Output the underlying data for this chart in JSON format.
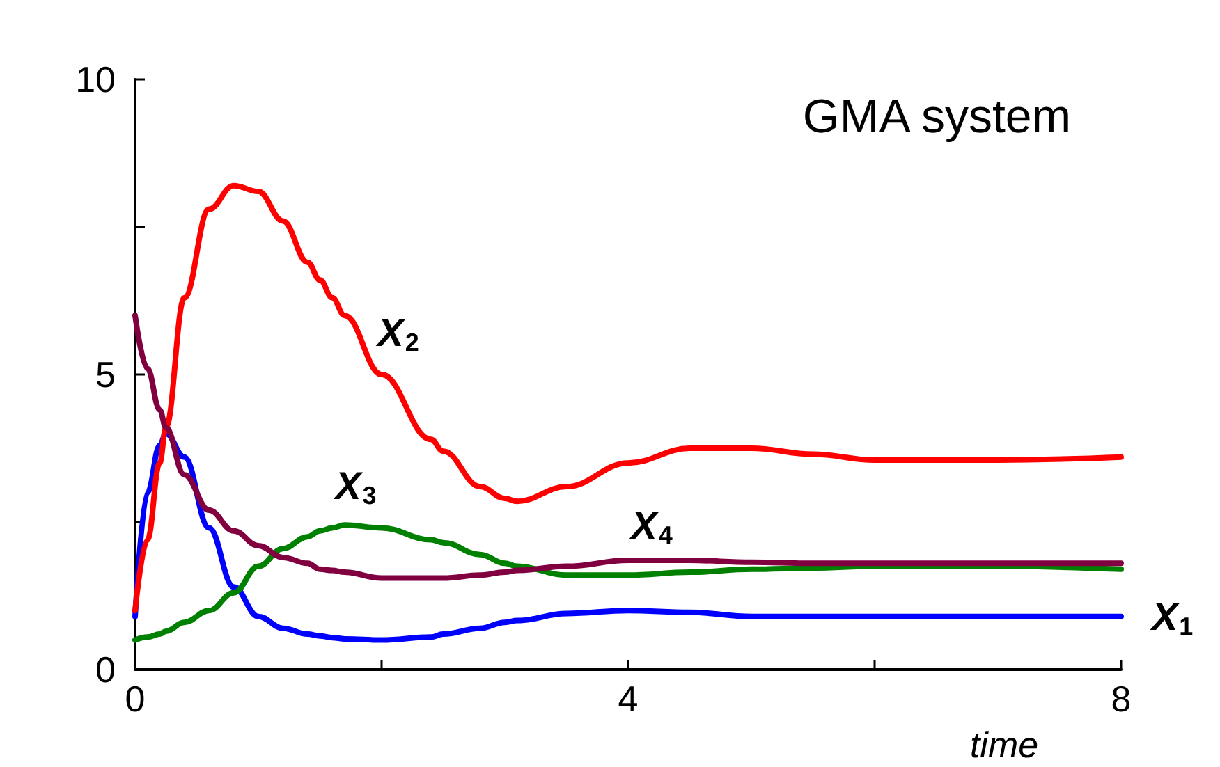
{
  "chart_data": {
    "type": "line",
    "title": "GMA system",
    "xlabel": "time",
    "x": [
      0,
      0.1,
      0.2,
      0.25,
      0.4,
      0.6,
      0.8,
      1,
      1.2,
      1.4,
      1.5,
      1.6,
      1.7,
      2,
      2.4,
      2.5,
      2.8,
      3,
      3.1,
      3.5,
      4,
      4.5,
      5,
      5.5,
      6,
      7,
      8
    ],
    "series": [
      {
        "name": "X$_{1}$",
        "color": "#0000ff",
        "values": [
          0.9,
          3.0,
          3.8,
          4.0,
          3.6,
          2.4,
          1.4,
          0.9,
          0.7,
          0.6,
          0.57,
          0.54,
          0.52,
          0.5,
          0.55,
          0.6,
          0.7,
          0.8,
          0.83,
          0.95,
          1.0,
          0.97,
          0.9,
          0.9,
          0.9,
          0.9,
          0.9
        ]
      },
      {
        "name": "X$_{2}$",
        "color": "#ff0000",
        "values": [
          1.0,
          2.2,
          3.5,
          4.1,
          6.3,
          7.8,
          8.2,
          8.1,
          7.6,
          6.9,
          6.6,
          6.3,
          6.0,
          5.0,
          3.9,
          3.7,
          3.1,
          2.9,
          2.85,
          3.1,
          3.5,
          3.75,
          3.75,
          3.65,
          3.55,
          3.55,
          3.6
        ]
      },
      {
        "name": "X$_{3}$",
        "color": "#008000",
        "values": [
          0.5,
          0.55,
          0.6,
          0.65,
          0.8,
          1.0,
          1.3,
          1.75,
          2.05,
          2.25,
          2.35,
          2.4,
          2.45,
          2.4,
          2.2,
          2.15,
          1.95,
          1.8,
          1.75,
          1.6,
          1.6,
          1.65,
          1.7,
          1.72,
          1.75,
          1.75,
          1.7
        ]
      },
      {
        "name": "X$_{4}$",
        "color": "#800040",
        "values": [
          6.0,
          5.1,
          4.4,
          4.1,
          3.3,
          2.7,
          2.35,
          2.1,
          1.9,
          1.8,
          1.7,
          1.68,
          1.65,
          1.55,
          1.55,
          1.55,
          1.6,
          1.65,
          1.68,
          1.75,
          1.85,
          1.85,
          1.82,
          1.8,
          1.8,
          1.8,
          1.8
        ]
      }
    ],
    "xlim": [
      0,
      8
    ],
    "xticks": [
      0,
      {
        "value": 2,
        "label": null
      },
      4,
      {
        "value": 6,
        "label": null
      },
      8
    ],
    "ylim": [
      0,
      10
    ],
    "yticks": [
      0,
      {
        "value": 2.5,
        "label": null
      },
      5,
      {
        "value": 7.5,
        "label": null
      },
      10
    ],
    "grid": false,
    "marker": "none",
    "line_style": "solid"
  }
}
